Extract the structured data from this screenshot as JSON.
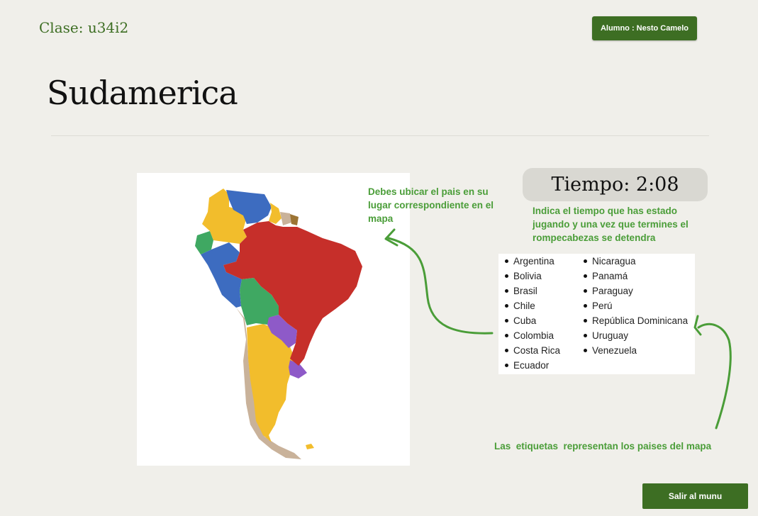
{
  "header": {
    "class_label": "Clase: u34i2",
    "student_button": "Alumno : Nesto Camelo"
  },
  "page_title": "Sudamerica",
  "hints": {
    "map": "Debes ubicar el pais en su lugar correspondiente en el mapa",
    "timer": "Indica el tiempo que has estado jugando y una vez que termines el rompecabezas se detendra",
    "labels": "Las  etiquetas  representan los paises del mapa"
  },
  "timer": {
    "text": "Tiempo: 2:08"
  },
  "labels": {
    "column_1": [
      "Argentina",
      "Bolivia",
      "Brasil",
      "Chile",
      "Cuba",
      "Colombia",
      "Costa Rica",
      "Ecuador"
    ],
    "column_2": [
      "Nicaragua",
      "Panamá",
      "Paraguay",
      "Perú",
      "República Dominicana",
      "Uruguay",
      "Venezuela"
    ]
  },
  "footer": {
    "exit_button": "Salir al munu"
  },
  "colors": {
    "brand_green": "#3d6e23",
    "hint_green": "#4a9d38",
    "brazil": "#c62f2a",
    "argentina": "#f2bd2c",
    "colombia": "#f2bd2c",
    "venezuela": "#3d6cc0",
    "peru": "#3d6cc0",
    "ecuador": "#3fa862",
    "bolivia": "#3fa862",
    "paraguay": "#8e5ac8",
    "uruguay": "#8e5ac8",
    "chile": "#c9b29a",
    "guyana": "#f2bd2c",
    "suriname": "#c9b29a",
    "french_guiana": "#9c7434"
  }
}
